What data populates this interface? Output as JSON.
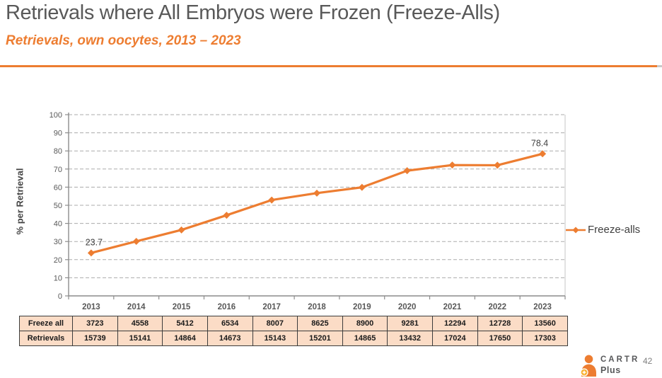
{
  "slide": {
    "title": "Retrievals where All Embryos were Frozen (Freeze-Alls)",
    "subtitle": "Retrievals, own oocytes, 2013 – 2023",
    "page_number": "42"
  },
  "chart_data": {
    "type": "line",
    "title": "",
    "xlabel": "",
    "ylabel": "% per Retrieval",
    "ylim": [
      0,
      100
    ],
    "ytick_step": 10,
    "grid": "horizontal-dashed",
    "categories": [
      "2013",
      "2014",
      "2015",
      "2016",
      "2017",
      "2018",
      "2019",
      "2020",
      "2021",
      "2022",
      "2023"
    ],
    "series": [
      {
        "name": "Freeze-alls",
        "color": "#ED7D31",
        "marker": "diamond",
        "values": [
          23.7,
          30.1,
          36.4,
          44.5,
          52.9,
          56.7,
          59.9,
          69.1,
          72.2,
          72.1,
          78.4
        ]
      }
    ],
    "point_labels": [
      {
        "index": 0,
        "text": "23.7"
      },
      {
        "index": 10,
        "text": "78.4"
      }
    ],
    "legend": {
      "position": "right",
      "entries": [
        "Freeze-alls"
      ]
    }
  },
  "table": {
    "rows": [
      {
        "label": "Freeze all",
        "values": [
          "3723",
          "4558",
          "5412",
          "6534",
          "8007",
          "8625",
          "8900",
          "9281",
          "12294",
          "12728",
          "13560"
        ]
      },
      {
        "label": "Retrievals",
        "values": [
          "15739",
          "15141",
          "14864",
          "14673",
          "15143",
          "15201",
          "14865",
          "13432",
          "17024",
          "17650",
          "17303"
        ]
      }
    ]
  },
  "logo": {
    "brand_top": "CARTR",
    "brand_bottom": "Plus",
    "icon": "person-plus-icon"
  },
  "colors": {
    "accent_orange": "#ED7D31",
    "title_gray": "#595959",
    "axis_gray": "#8c8c8c",
    "grid_gray": "#ababab",
    "table_fill": "#FBDCC6"
  }
}
